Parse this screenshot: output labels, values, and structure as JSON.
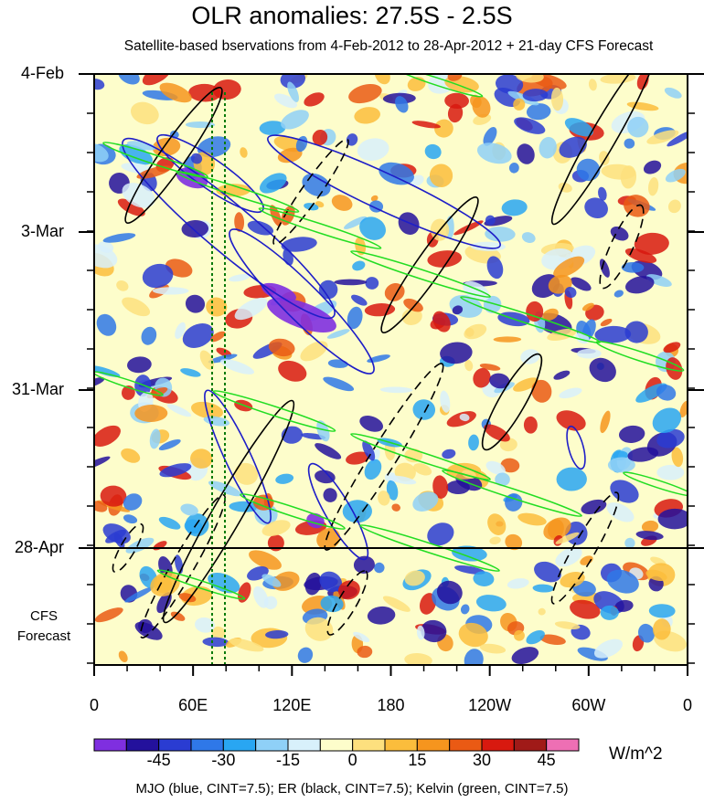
{
  "chart_data": {
    "type": "heatmap",
    "title": "OLR anomalies: 27.5S - 2.5S",
    "subtitle": "Satellite-based bservations from 4-Feb-2012 to 28-Apr-2012 + 21-day CFS Forecast",
    "y_axis": {
      "labels": [
        "4-Feb",
        "3-Mar",
        "31-Mar",
        "28-Apr"
      ]
    },
    "x_axis": {
      "labels": [
        "0",
        "60E",
        "120E",
        "180",
        "120W",
        "60W",
        "0"
      ]
    },
    "forecast_label": "CFS Forecast",
    "colorbar": {
      "labels": [
        "-45",
        "-30",
        "-15",
        "0",
        "15",
        "30",
        "45"
      ],
      "units": "W/m^2",
      "colors": [
        "#7f2fe0",
        "#23119c",
        "#2a3cd2",
        "#2f78e8",
        "#29a6f2",
        "#8fd0f7",
        "#d8f0fb",
        "#fdfdcb",
        "#fde07e",
        "#fbbd3c",
        "#f6951e",
        "#ea5a14",
        "#d8190f",
        "#a01a18",
        "#ee6fb4"
      ]
    },
    "caption": "MJO (blue, CINT=7.5); ER (black, CINT=7.5); Kelvin (green, CINT=7.5)",
    "contour_colors": {
      "mjo": "#1e1ec8",
      "er": "#000000",
      "kelvin": "#22dd22",
      "forecast_line": "#000000",
      "dotted_lines": "#0a7a0a"
    }
  }
}
